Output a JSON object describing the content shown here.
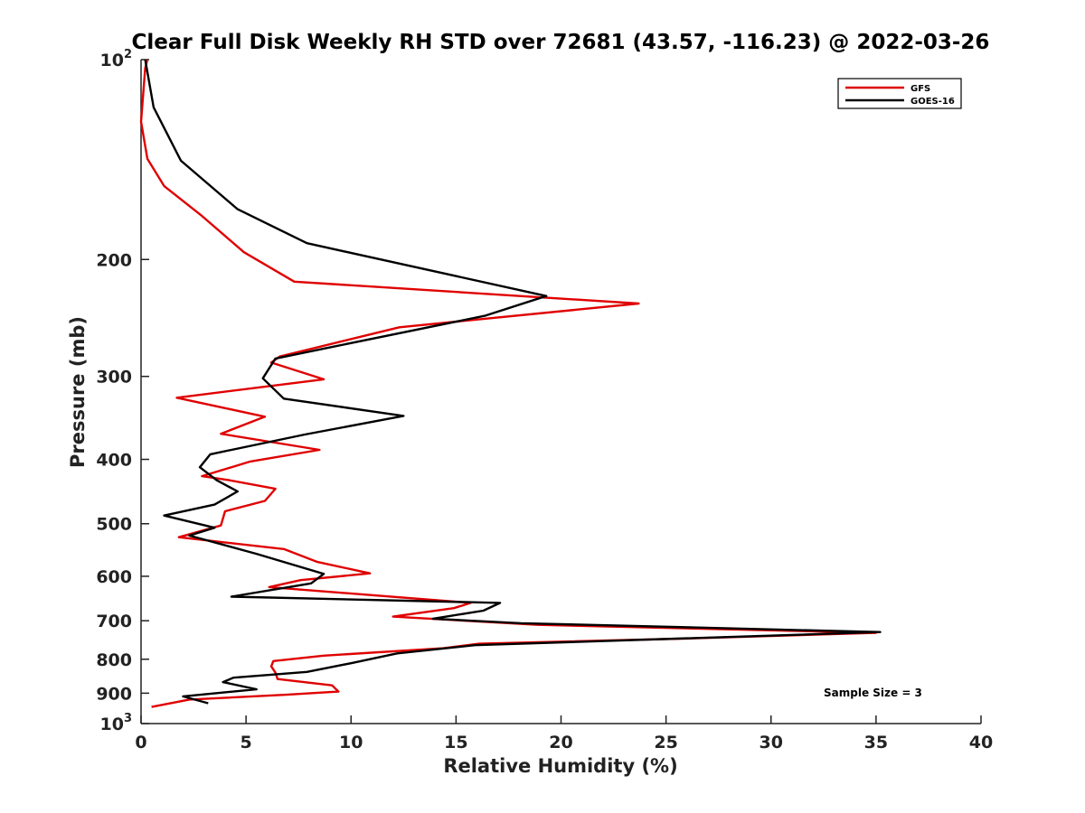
{
  "chart_data": {
    "type": "line",
    "title": "Clear Full Disk Weekly RH STD over 72681 (43.57, -116.23) @ 2022-03-26",
    "xlabel": "Relative Humidity (%)",
    "ylabel": "Pressure (mb)",
    "xlim": [
      0,
      40
    ],
    "ylim": [
      100,
      1000
    ],
    "y_scale": "log",
    "y_reversed": true,
    "grid": false,
    "legend_position": "top-right",
    "x_ticks": [
      0,
      5,
      10,
      15,
      20,
      25,
      30,
      35,
      40
    ],
    "x_tick_labels": [
      "0",
      "5",
      "10",
      "15",
      "20",
      "25",
      "30",
      "35",
      "40"
    ],
    "y_ticks": [
      100,
      200,
      300,
      400,
      500,
      600,
      700,
      800,
      900,
      1000
    ],
    "y_tick_labels": [
      {
        "base": "10",
        "exp": "2"
      },
      {
        "base": "200",
        "exp": ""
      },
      {
        "base": "300",
        "exp": ""
      },
      {
        "base": "400",
        "exp": ""
      },
      {
        "base": "500",
        "exp": ""
      },
      {
        "base": "600",
        "exp": ""
      },
      {
        "base": "700",
        "exp": ""
      },
      {
        "base": "800",
        "exp": ""
      },
      {
        "base": "900",
        "exp": ""
      },
      {
        "base": "10",
        "exp": "3"
      }
    ],
    "annotation": "Sample Size = 3",
    "series": [
      {
        "name": "GFS",
        "color": "#e00000",
        "points": [
          [
            0.3,
            100
          ],
          [
            0.2,
            103
          ],
          [
            0.1,
            113
          ],
          [
            0.0,
            124
          ],
          [
            0.3,
            141
          ],
          [
            1.1,
            155
          ],
          [
            2.9,
            172
          ],
          [
            4.9,
            195
          ],
          [
            7.3,
            216
          ],
          [
            23.7,
            233
          ],
          [
            12.3,
            253
          ],
          [
            6.6,
            280
          ],
          [
            6.2,
            286
          ],
          [
            8.7,
            303
          ],
          [
            1.7,
            323
          ],
          [
            5.9,
            345
          ],
          [
            3.8,
            366
          ],
          [
            8.5,
            387
          ],
          [
            5.2,
            403
          ],
          [
            2.9,
            424
          ],
          [
            4.2,
            430
          ],
          [
            6.4,
            443
          ],
          [
            5.9,
            462
          ],
          [
            4.0,
            479
          ],
          [
            3.8,
            503
          ],
          [
            1.8,
            524
          ],
          [
            6.8,
            546
          ],
          [
            8.4,
            571
          ],
          [
            10.9,
            594
          ],
          [
            7.6,
            608
          ],
          [
            6.1,
            623
          ],
          [
            15.7,
            658
          ],
          [
            14.9,
            670
          ],
          [
            12.0,
            690
          ],
          [
            18.9,
            710
          ],
          [
            35.0,
            730
          ],
          [
            26.4,
            744
          ],
          [
            16.1,
            758
          ],
          [
            14.4,
            770
          ],
          [
            8.7,
            790
          ],
          [
            6.3,
            805
          ],
          [
            6.2,
            820
          ],
          [
            6.4,
            838
          ],
          [
            6.5,
            857
          ],
          [
            9.1,
            876
          ],
          [
            9.4,
            895
          ],
          [
            6.9,
            905
          ],
          [
            2.3,
            920
          ],
          [
            0.5,
            944
          ]
        ]
      },
      {
        "name": "GOES-16",
        "color": "#000000",
        "points": [
          [
            0.2,
            100
          ],
          [
            0.6,
            118
          ],
          [
            1.9,
            142
          ],
          [
            4.6,
            168
          ],
          [
            7.9,
            189
          ],
          [
            19.3,
            227
          ],
          [
            16.4,
            243
          ],
          [
            6.4,
            282
          ],
          [
            5.8,
            302
          ],
          [
            6.8,
            324
          ],
          [
            12.5,
            344
          ],
          [
            7.8,
            367
          ],
          [
            3.3,
            393
          ],
          [
            2.8,
            411
          ],
          [
            3.6,
            430
          ],
          [
            4.6,
            447
          ],
          [
            3.5,
            468
          ],
          [
            1.1,
            486
          ],
          [
            3.5,
            507
          ],
          [
            2.3,
            521
          ],
          [
            5.5,
            555
          ],
          [
            8.7,
            595
          ],
          [
            8.1,
            615
          ],
          [
            4.3,
            644
          ],
          [
            17.1,
            658
          ],
          [
            16.3,
            676
          ],
          [
            13.9,
            695
          ],
          [
            18.1,
            706
          ],
          [
            35.2,
            728
          ],
          [
            15.9,
            762
          ],
          [
            12.2,
            784
          ],
          [
            10.1,
            810
          ],
          [
            7.9,
            836
          ],
          [
            4.4,
            853
          ],
          [
            3.9,
            866
          ],
          [
            5.5,
            888
          ],
          [
            2.0,
            910
          ],
          [
            3.2,
            932
          ]
        ]
      }
    ]
  }
}
